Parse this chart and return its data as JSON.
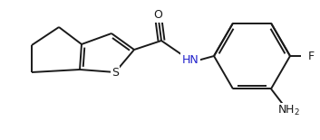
{
  "bg_color": "#ffffff",
  "line_color": "#1a1a1a",
  "line_width": 1.4,
  "font_size": 8.5,
  "figsize": [
    3.53,
    1.55
  ],
  "dpi": 100,
  "xlim": [
    0,
    353
  ],
  "ylim": [
    0,
    155
  ]
}
